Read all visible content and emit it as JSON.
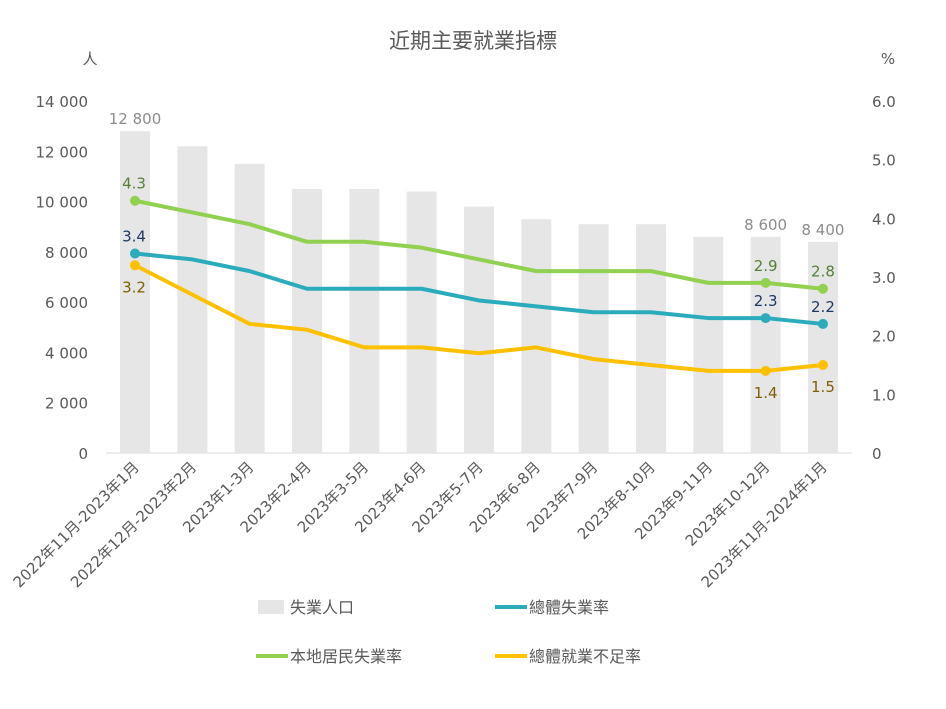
{
  "chart_data": {
    "type": "bar+line",
    "title": "近期主要就業指標",
    "left_axis": {
      "unit": "人",
      "ylim": [
        0,
        14000
      ],
      "ticks": [
        "0",
        "2 000",
        "4 000",
        "6 000",
        "8 000",
        "10 000",
        "12 000",
        "14 000"
      ]
    },
    "right_axis": {
      "unit": "%",
      "ylim": [
        0,
        6
      ],
      "ticks": [
        "0",
        "1.0",
        "2.0",
        "3.0",
        "4.0",
        "5.0",
        "6.0"
      ]
    },
    "categories": [
      "2022年11月-2023年1月",
      "2022年12月-2023年2月",
      "2023年1-3月",
      "2023年2-4月",
      "2023年3-5月",
      "2023年4-6月",
      "2023年5-7月",
      "2023年6-8月",
      "2023年7-9月",
      "2023年8-10月",
      "2023年9-11月",
      "2023年10-12月",
      "2023年11月-2024年1月"
    ],
    "grid": false,
    "legend_position": "bottom",
    "series": [
      {
        "name": "失業人口",
        "type": "bar",
        "axis": "left",
        "color": "#e6e6e6",
        "label_color": "#8c8c8c",
        "values": [
          12800,
          12200,
          11500,
          10500,
          10500,
          10400,
          9800,
          9300,
          9100,
          9100,
          8600,
          8600,
          8400
        ],
        "data_labels": {
          "0": "12 800",
          "11": "8 600",
          "12": "8 400"
        }
      },
      {
        "name": "總體失業率",
        "type": "line",
        "axis": "right",
        "color": "#2aacbc",
        "label_color": "#1f3864",
        "values": [
          3.4,
          3.3,
          3.1,
          2.8,
          2.8,
          2.8,
          2.6,
          2.5,
          2.4,
          2.4,
          2.3,
          2.3,
          2.2
        ],
        "data_labels": {
          "0": "3.4",
          "11": "2.3",
          "12": "2.2"
        }
      },
      {
        "name": "本地居民失業率",
        "type": "line",
        "axis": "right",
        "color": "#92d050",
        "label_color": "#538135",
        "values": [
          4.3,
          4.1,
          3.9,
          3.6,
          3.6,
          3.5,
          3.3,
          3.1,
          3.1,
          3.1,
          2.9,
          2.9,
          2.8
        ],
        "data_labels": {
          "0": "4.3",
          "11": "2.9",
          "12": "2.8"
        }
      },
      {
        "name": "總體就業不足率",
        "type": "line",
        "axis": "right",
        "color": "#ffc000",
        "label_color": "#7f6000",
        "values": [
          3.2,
          2.7,
          2.2,
          2.1,
          1.8,
          1.8,
          1.7,
          1.8,
          1.6,
          1.5,
          1.4,
          1.4,
          1.5
        ],
        "data_labels": {
          "0": "3.2",
          "11": "1.4",
          "12": "1.5"
        }
      }
    ]
  }
}
